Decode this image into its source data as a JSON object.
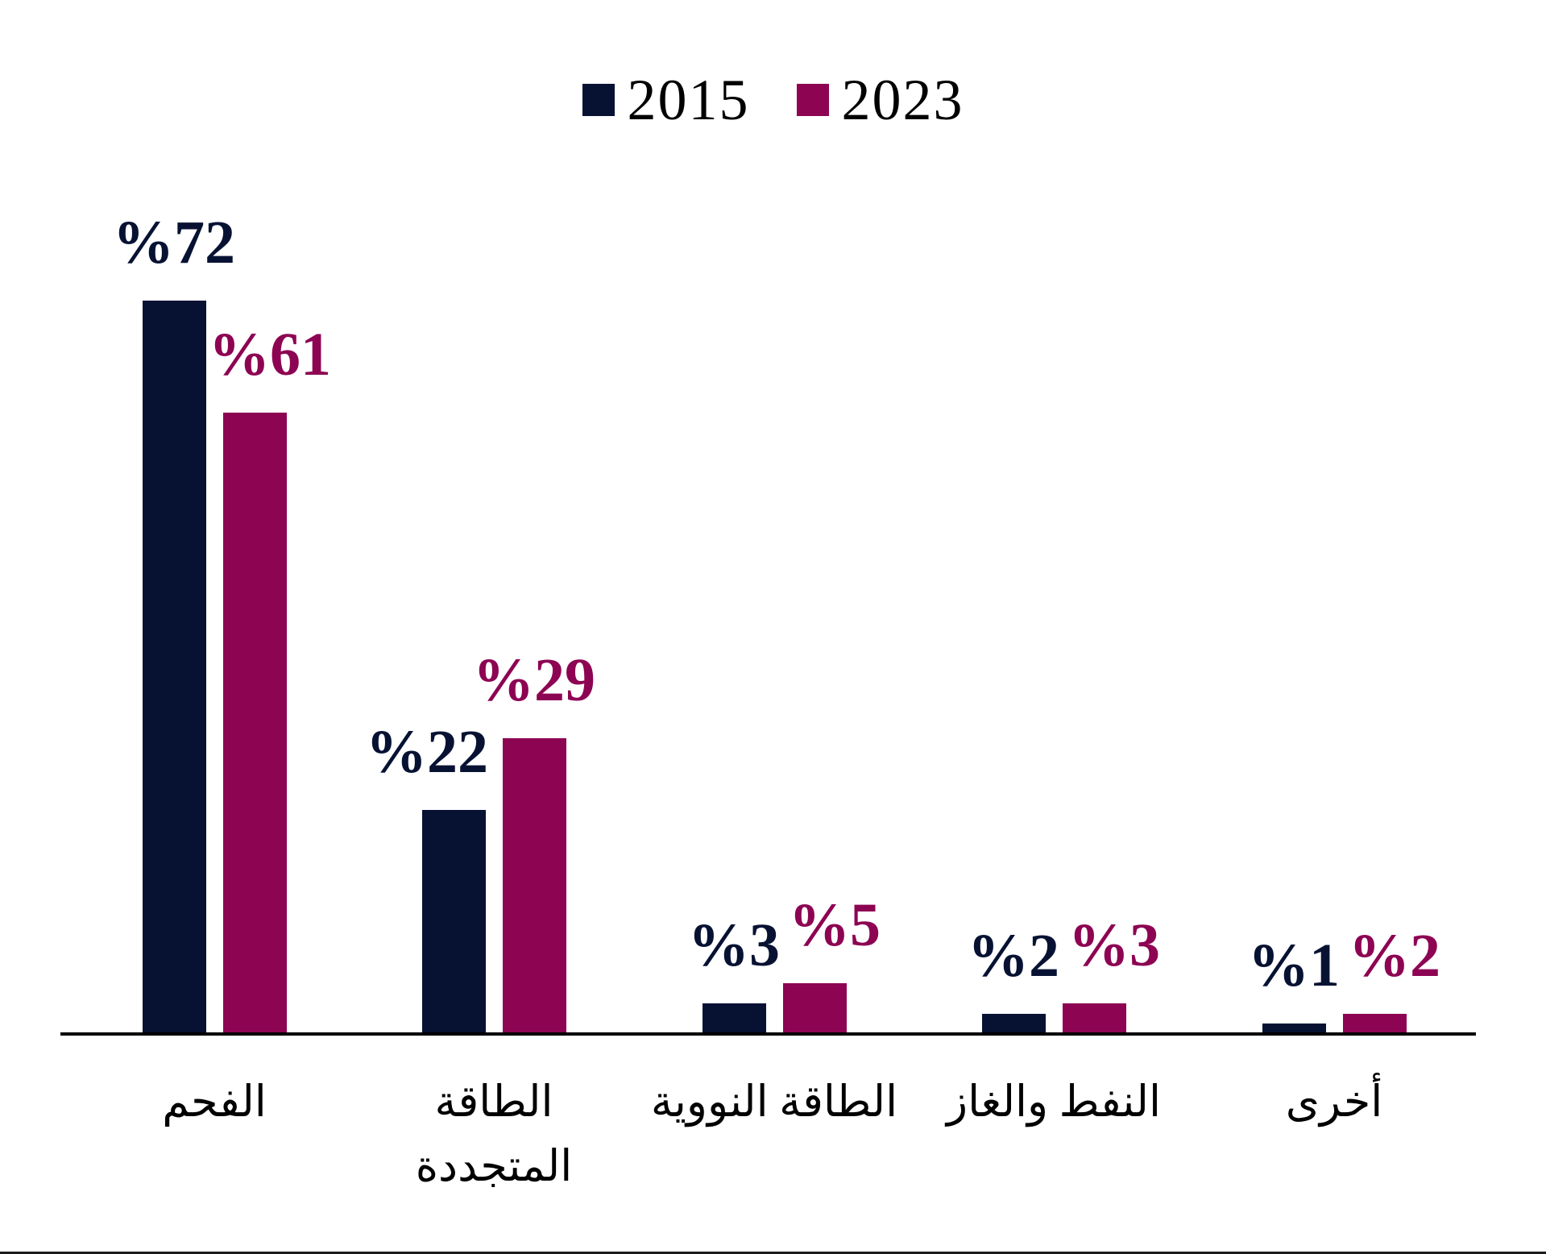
{
  "chart_data": {
    "type": "bar",
    "title": "",
    "xlabel": "",
    "ylabel": "",
    "ylim": [
      0,
      80
    ],
    "grid": false,
    "legend_position": "top-center",
    "value_label_format": "%<value>",
    "categories": [
      "الفحم",
      "الطاقة المتجددة",
      "الطاقة النووية",
      "النفط والغاز",
      "أخرى"
    ],
    "category_lines": [
      [
        "الفحم"
      ],
      [
        "الطاقة",
        "المتجددة"
      ],
      [
        "الطاقة النووية"
      ],
      [
        "النفط والغاز"
      ],
      [
        "أخرى"
      ]
    ],
    "series": [
      {
        "name": "2015",
        "color": "#071233",
        "values": [
          72,
          22,
          3,
          2,
          1
        ],
        "labels": [
          "%72",
          "%22",
          "%3",
          "%2",
          "%1"
        ]
      },
      {
        "name": "2023",
        "color": "#8d0453",
        "values": [
          61,
          29,
          5,
          3,
          2
        ],
        "labels": [
          "%61",
          "%29",
          "%5",
          "%3",
          "%2"
        ]
      }
    ]
  },
  "legend": {
    "items": [
      {
        "label": "2015",
        "color": "#071233"
      },
      {
        "label": "2023",
        "color": "#8d0453"
      }
    ]
  },
  "colors": {
    "axis": "#000000",
    "background": "#ffffff",
    "bottom_border": "#1c1c1c"
  }
}
